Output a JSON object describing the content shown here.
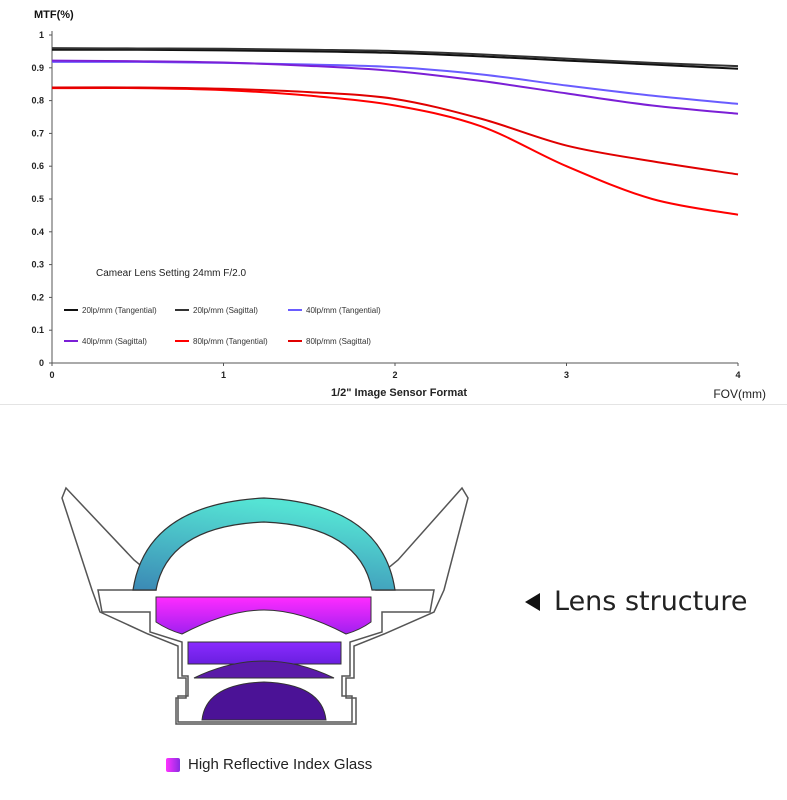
{
  "chart_data": {
    "type": "line",
    "ylabel": "MTF(%)",
    "xlabel": "1/2\" Image Sensor Format",
    "xlabel_end": "FOV(mm)",
    "annotation": "Camear Lens Setting 24mm F/2.0",
    "xlim": [
      0,
      4
    ],
    "ylim": [
      0,
      1
    ],
    "x_ticks": [
      "0",
      "1",
      "2",
      "3",
      "4"
    ],
    "y_ticks": [
      "0",
      "0.1",
      "0.2",
      "0.3",
      "0.4",
      "0.5",
      "0.6",
      "0.7",
      "0.8",
      "0.9",
      "1"
    ],
    "x": [
      0,
      0.5,
      1,
      1.5,
      2,
      2.5,
      3,
      3.5,
      4
    ],
    "grid": false,
    "legend_position": "bottom-left",
    "series": [
      {
        "name": "20lp/mm (Tangential)",
        "color": "#111111",
        "values": [
          0.955,
          0.955,
          0.953,
          0.95,
          0.945,
          0.935,
          0.922,
          0.91,
          0.897
        ]
      },
      {
        "name": "20lp/mm (Sagittal)",
        "color": "#333333",
        "values": [
          0.96,
          0.959,
          0.958,
          0.955,
          0.951,
          0.941,
          0.928,
          0.915,
          0.905
        ]
      },
      {
        "name": "40lp/mm (Tangential)",
        "color": "#6a5cff",
        "values": [
          0.918,
          0.918,
          0.915,
          0.91,
          0.902,
          0.88,
          0.846,
          0.815,
          0.79
        ]
      },
      {
        "name": "40lp/mm (Sagittal)",
        "color": "#7b1fd6",
        "values": [
          0.922,
          0.92,
          0.916,
          0.906,
          0.89,
          0.86,
          0.822,
          0.785,
          0.76
        ]
      },
      {
        "name": "80lp/mm (Tangential)",
        "color": "#ff0000",
        "values": [
          0.838,
          0.838,
          0.832,
          0.815,
          0.785,
          0.722,
          0.6,
          0.5,
          0.452
        ]
      },
      {
        "name": "80lp/mm (Sagittal)",
        "color": "#e00000",
        "values": [
          0.84,
          0.84,
          0.836,
          0.826,
          0.805,
          0.745,
          0.663,
          0.615,
          0.575
        ]
      }
    ]
  },
  "lens": {
    "caption": "Lens structure",
    "legend_label": "High Reflective Index Glass",
    "colors": {
      "outline": "#444444",
      "dome_left": "#3b89b5",
      "dome_top": "#55e3d4",
      "element_magenta_top": "#ff2bff",
      "element_magenta_bottom": "#a020f0",
      "element_violet": "#7b2cff",
      "element_dark_purple": "#5a1aa8",
      "element_indigo": "#4b1296"
    }
  }
}
